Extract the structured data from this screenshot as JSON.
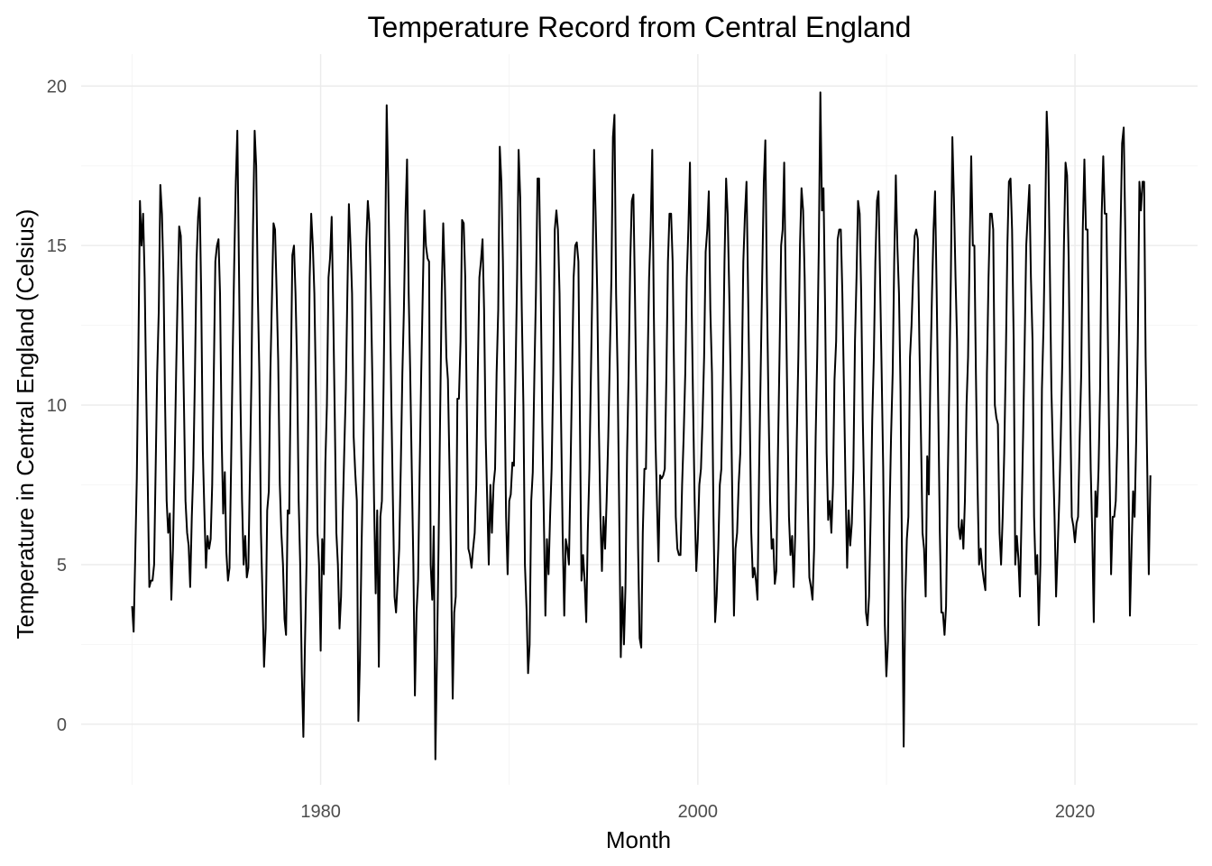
{
  "chart_data": {
    "type": "line",
    "title": "Temperature Record from Central England",
    "xlabel": "Month",
    "ylabel": "Temperature in Central England (Celsius)",
    "xlim": [
      1967.3,
      2026.5
    ],
    "ylim": [
      -1.9,
      21.0
    ],
    "x_major_ticks": [
      1980,
      2000,
      2020
    ],
    "x_minor_ticks": [
      1970,
      1990,
      2010
    ],
    "y_major_ticks": [
      0,
      5,
      10,
      15,
      20
    ],
    "y_minor_ticks": [
      2.5,
      7.5,
      12.5,
      17.5
    ],
    "grid": true,
    "legend": "none",
    "line_color": "#000000",
    "x_start": 1970.0,
    "x_step": 0.08333,
    "series": [
      {
        "values": [
          3.7,
          2.9,
          5.2,
          7.7,
          11.6,
          16.4,
          15.0,
          16.0,
          14.0,
          10.5,
          7.4,
          4.3,
          4.5,
          4.5,
          5.0,
          8.0,
          11.0,
          13.0,
          16.9,
          16.0,
          14.0,
          10.0,
          7.0,
          6.0,
          6.6,
          3.9,
          5.5,
          8.0,
          11.0,
          13.5,
          15.6,
          15.3,
          13.0,
          10.0,
          7.0,
          6.0,
          5.6,
          4.3,
          6.5,
          8.0,
          11.0,
          14.5,
          15.9,
          16.5,
          13.5,
          8.6,
          6.7,
          4.9,
          5.9,
          5.5,
          5.8,
          7.5,
          11.0,
          14.5,
          15.0,
          15.2,
          13.5,
          9.0,
          6.6,
          7.9,
          5.4,
          4.5,
          4.9,
          8.0,
          11.5,
          14.4,
          17.0,
          18.6,
          14.3,
          10.1,
          7.0,
          5.0,
          5.9,
          4.6,
          4.9,
          8.0,
          11.0,
          15.6,
          18.6,
          17.5,
          13.5,
          11.0,
          6.0,
          4.0,
          1.8,
          3.0,
          6.7,
          7.3,
          11.0,
          13.4,
          15.7,
          15.5,
          13.5,
          11.4,
          7.5,
          6.0,
          5.0,
          3.3,
          2.8,
          6.7,
          6.6,
          11.0,
          14.7,
          15.0,
          13.5,
          11.3,
          7.0,
          5.0,
          1.6,
          -0.4,
          2.4,
          5.0,
          9.0,
          14.0,
          16.0,
          15.0,
          13.5,
          10.5,
          6.0,
          5.0,
          2.3,
          5.8,
          4.7,
          8.2,
          10.0,
          14.0,
          14.6,
          15.9,
          13.0,
          9.5,
          6.0,
          5.0,
          3.0,
          4.0,
          6.5,
          8.5,
          10.5,
          13.5,
          16.3,
          15.0,
          13.5,
          9.0,
          7.9,
          7.0,
          0.1,
          2.0,
          5.5,
          8.0,
          11.0,
          15.0,
          16.4,
          15.7,
          13.5,
          10.5,
          7.0,
          4.1,
          6.7,
          1.8,
          6.5,
          7.0,
          10.5,
          14.5,
          19.4,
          17.0,
          13.5,
          10.0,
          7.0,
          4.0,
          3.5,
          4.5,
          5.5,
          8.0,
          11.0,
          13.0,
          16.0,
          17.7,
          13.5,
          11.0,
          8.0,
          5.0,
          0.9,
          3.5,
          4.5,
          8.0,
          11.0,
          13.5,
          16.1,
          15.0,
          14.6,
          14.5,
          5.0,
          3.9,
          6.2,
          -1.1,
          2.0,
          5.5,
          9.5,
          13.5,
          15.7,
          14.0,
          11.5,
          10.8,
          8.0,
          5.0,
          0.8,
          3.5,
          4.0,
          10.2,
          10.2,
          12.0,
          15.8,
          15.7,
          14.0,
          10.0,
          5.5,
          5.3,
          4.9,
          5.5,
          6.0,
          7.5,
          11.0,
          14.0,
          14.5,
          15.2,
          13.0,
          9.0,
          7.0,
          5.0,
          7.5,
          6.0,
          7.5,
          8.0,
          11.0,
          13.0,
          18.1,
          17.0,
          14.5,
          10.5,
          6.5,
          4.7,
          7.0,
          7.2,
          8.2,
          8.1,
          11.0,
          14.0,
          18.0,
          16.5,
          13.0,
          10.0,
          5.0,
          3.6,
          1.6,
          2.5,
          7.0,
          7.9,
          11.0,
          13.5,
          17.1,
          17.1,
          14.0,
          9.5,
          6.6,
          3.4,
          5.8,
          4.7,
          6.5,
          8.0,
          11.0,
          15.5,
          16.1,
          15.5,
          13.5,
          9.5,
          6.0,
          3.4,
          5.8,
          5.5,
          5.0,
          8.0,
          11.0,
          14.0,
          15.0,
          15.1,
          14.5,
          9.5,
          4.5,
          5.3,
          4.5,
          3.2,
          6.0,
          8.0,
          11.0,
          14.0,
          18.0,
          16.0,
          13.5,
          9.5,
          6.5,
          4.8,
          6.5,
          5.5,
          7.0,
          9.0,
          11.5,
          14.0,
          18.4,
          19.1,
          13.5,
          11.0,
          6.5,
          2.1,
          4.3,
          2.5,
          4.3,
          8.5,
          11.0,
          14.5,
          16.4,
          16.6,
          13.5,
          10.0,
          5.5,
          2.7,
          2.4,
          6.0,
          8.0,
          8.0,
          11.0,
          14.0,
          15.5,
          18.0,
          13.0,
          9.0,
          7.0,
          5.1,
          7.8,
          7.7,
          7.8,
          8.0,
          11.0,
          14.5,
          16.0,
          16.0,
          14.5,
          10.5,
          6.5,
          5.5,
          5.3,
          5.3,
          7.5,
          9.0,
          11.0,
          14.0,
          15.5,
          17.6,
          13.5,
          10.0,
          7.0,
          4.8,
          5.8,
          7.5,
          8.0,
          9.5,
          11.5,
          14.8,
          15.5,
          16.7,
          13.0,
          11.0,
          6.5,
          3.2,
          4.0,
          5.5,
          7.5,
          8.0,
          11.0,
          14.5,
          17.1,
          16.0,
          13.5,
          10.5,
          7.0,
          3.4,
          5.5,
          6.0,
          7.5,
          8.5,
          11.0,
          14.5,
          16.0,
          17.0,
          13.5,
          10.0,
          6.0,
          4.6,
          4.9,
          4.5,
          3.9,
          8.0,
          11.0,
          14.0,
          17.0,
          18.3,
          13.5,
          10.0,
          7.0,
          5.5,
          5.8,
          4.4,
          4.8,
          8.5,
          11.5,
          15.0,
          15.5,
          17.6,
          13.5,
          10.0,
          6.5,
          5.3,
          5.9,
          4.3,
          5.9,
          9.0,
          11.5,
          15.0,
          16.8,
          16.1,
          14.0,
          10.5,
          7.0,
          4.6,
          4.3,
          3.9,
          5.5,
          9.0,
          11.5,
          15.0,
          19.8,
          16.1,
          16.8,
          13.0,
          8.5,
          6.4,
          7.0,
          6.0,
          7.5,
          10.8,
          12.0,
          15.2,
          15.5,
          15.5,
          13.5,
          10.5,
          7.5,
          4.9,
          6.7,
          5.6,
          6.3,
          8.0,
          12.0,
          14.0,
          16.4,
          16.0,
          13.5,
          9.5,
          7.0,
          3.5,
          3.1,
          4.0,
          6.5,
          9.5,
          11.5,
          14.5,
          16.4,
          16.7,
          14.0,
          11.0,
          8.0,
          3.1,
          1.5,
          2.6,
          6.5,
          9.0,
          11.0,
          14.5,
          17.2,
          15.0,
          13.5,
          10.5,
          5.0,
          -0.7,
          3.8,
          5.8,
          6.5,
          11.5,
          12.5,
          14.0,
          15.3,
          15.5,
          15.2,
          12.0,
          9.0,
          6.0,
          5.5,
          4.0,
          8.4,
          7.2,
          11.0,
          13.5,
          15.5,
          16.7,
          13.5,
          10.0,
          6.0,
          3.5,
          3.5,
          2.8,
          3.7,
          7.5,
          10.5,
          14.0,
          18.4,
          16.5,
          14.0,
          12.0,
          6.2,
          5.8,
          6.4,
          5.5,
          7.0,
          10.0,
          11.5,
          15.0,
          17.8,
          15.0,
          15.0,
          11.0,
          7.5,
          5.0,
          5.5,
          4.9,
          4.5,
          4.2,
          11.0,
          14.0,
          16.0,
          16.0,
          15.5,
          10.0,
          9.6,
          9.4,
          6.0,
          5.0,
          6.5,
          8.5,
          11.5,
          15.0,
          17.0,
          17.1,
          15.5,
          12.0,
          5.0,
          5.9,
          5.2,
          4.0,
          6.5,
          9.0,
          12.0,
          15.0,
          16.0,
          16.9,
          14.0,
          12.0,
          6.5,
          4.7,
          5.3,
          3.1,
          5.0,
          10.5,
          12.5,
          15.5,
          19.2,
          18.0,
          14.5,
          10.5,
          8.5,
          6.5,
          4.0,
          5.5,
          7.0,
          9.0,
          11.5,
          15.0,
          17.6,
          17.2,
          14.5,
          10.0,
          6.5,
          6.2,
          5.7,
          6.3,
          6.5,
          9.0,
          11.0,
          15.5,
          17.7,
          15.5,
          15.5,
          11.5,
          8.0,
          6.0,
          3.2,
          7.3,
          6.5,
          8.0,
          10.5,
          16.0,
          17.8,
          16.0,
          16.0,
          12.0,
          8.0,
          4.7,
          6.5,
          6.5,
          7.0,
          9.0,
          12.0,
          15.5,
          18.2,
          18.7,
          15.5,
          12.0,
          8.0,
          3.4,
          5.5,
          7.3,
          6.5,
          9.0,
          12.0,
          17.0,
          16.1,
          17.0,
          17.0,
          11.5,
          8.0,
          4.7,
          7.8
        ]
      }
    ]
  }
}
